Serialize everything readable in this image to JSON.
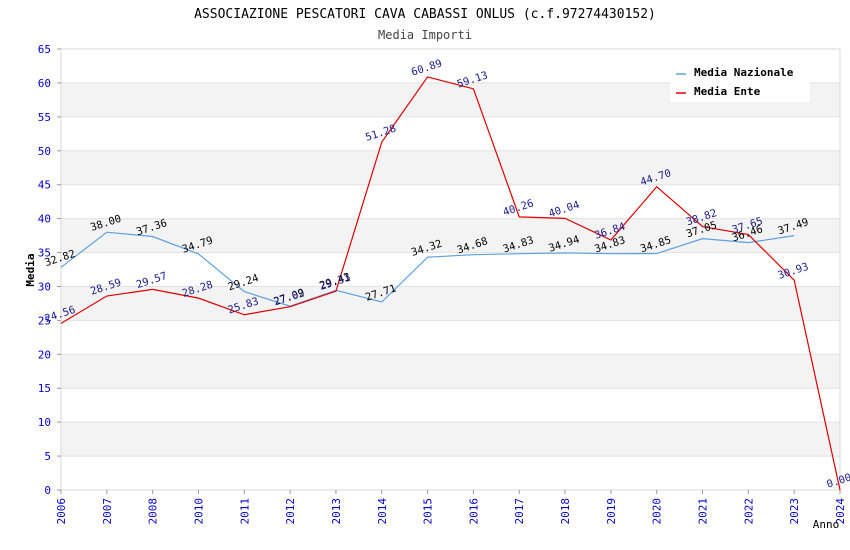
{
  "chart_data": {
    "type": "line",
    "title": "ASSOCIAZIONE PESCATORI CAVA CABASSI ONLUS (c.f.97274430152)",
    "subtitle": "Media Importi",
    "xlabel": "Anno",
    "ylabel": "Media",
    "ylim": [
      0,
      65
    ],
    "yticks": [
      0,
      5,
      10,
      15,
      20,
      25,
      30,
      35,
      40,
      45,
      50,
      55,
      60,
      65
    ],
    "x": [
      "2006",
      "2007",
      "2008",
      "2010",
      "2011",
      "2012",
      "2013",
      "2014",
      "2015",
      "2016",
      "2017",
      "2018",
      "2019",
      "2020",
      "2021",
      "2022",
      "2023",
      "2024"
    ],
    "grid": "horizontal alternating bands",
    "legend_position": "top-right",
    "series": [
      {
        "name": "Media Nazionale",
        "color": "#5aa0e0",
        "label_color": "#000000",
        "values": [
          32.82,
          38.0,
          37.36,
          34.79,
          29.24,
          27.09,
          29.43,
          27.71,
          34.32,
          34.68,
          34.83,
          34.94,
          34.83,
          34.85,
          37.05,
          36.46,
          37.49,
          null
        ],
        "labels": [
          "32.82",
          "38.00",
          "37.36",
          "34.79",
          "29.24",
          "27.09",
          "29.43",
          "27.71",
          "34.32",
          "34.68",
          "34.83",
          "34.94",
          "34.83",
          "34.85",
          "37.05",
          "36.46",
          "37.49",
          null
        ]
      },
      {
        "name": "Media Ente",
        "color": "#e00000",
        "label_color": "#1a1a8c",
        "values": [
          24.56,
          28.59,
          29.57,
          28.28,
          25.83,
          27.02,
          29.31,
          51.28,
          60.89,
          59.13,
          40.26,
          40.04,
          36.84,
          44.7,
          38.82,
          37.65,
          30.93,
          0.0
        ],
        "labels": [
          "24.56",
          "28.59",
          "29.57",
          "28.28",
          "25.83",
          "27.02",
          "29.31",
          "51.28",
          "60.89",
          "59.13",
          "40.26",
          "40.04",
          "36.84",
          "44.70",
          "38.82",
          "37.65",
          "30.93",
          "0.00"
        ]
      }
    ]
  }
}
